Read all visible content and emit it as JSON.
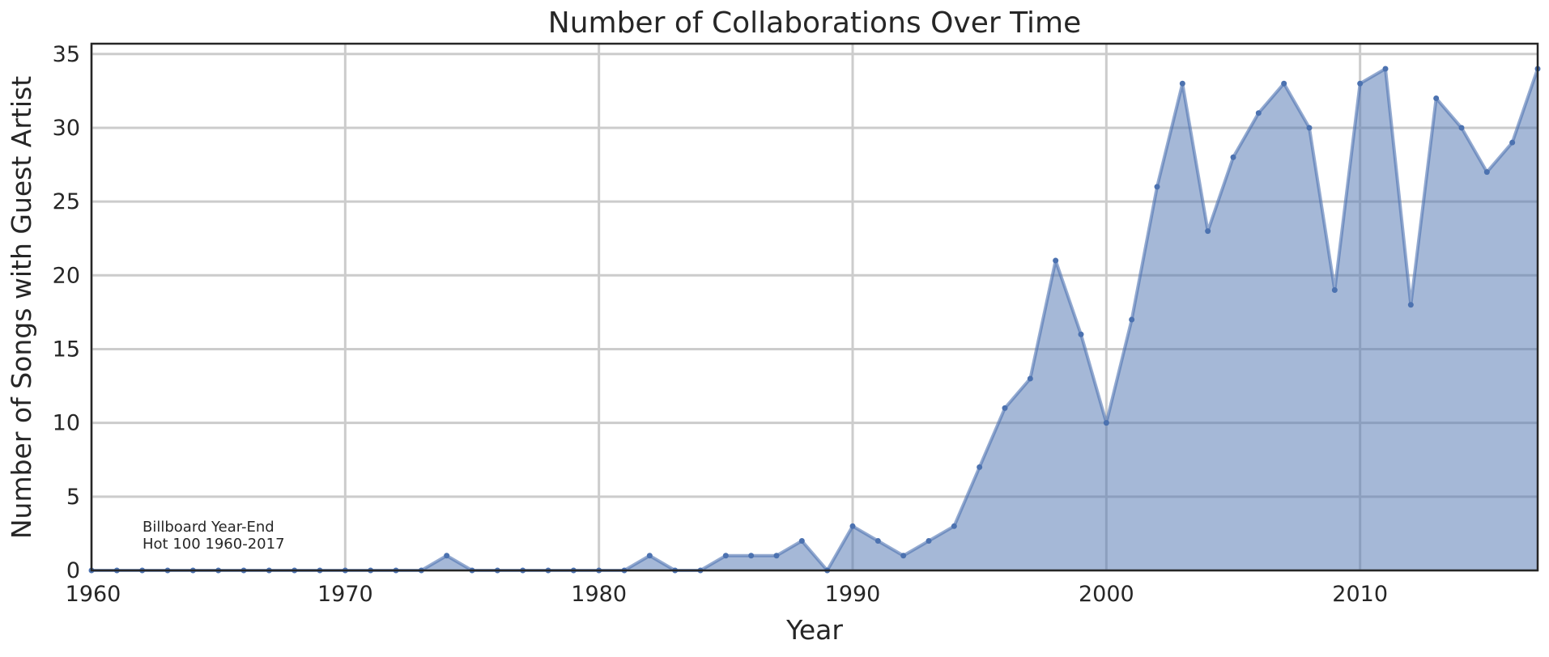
{
  "chart_data": {
    "type": "area",
    "title": "Number of Collaborations Over Time",
    "xlabel": "Year",
    "ylabel": "Number of Songs with Guest Artist",
    "xlim": [
      1960,
      2017
    ],
    "ylim": [
      0,
      35.7
    ],
    "xticks": [
      1960,
      1970,
      1980,
      1990,
      2000,
      2010
    ],
    "yticks": [
      0,
      5,
      10,
      15,
      20,
      25,
      30,
      35
    ],
    "grid": true,
    "annotation": [
      "Billboard Year-End",
      "Hot 100 1960-2017"
    ],
    "colors": {
      "fill": "#4c72b0",
      "line": "#4c72b0"
    },
    "x": [
      1960,
      1961,
      1962,
      1963,
      1964,
      1965,
      1966,
      1967,
      1968,
      1969,
      1970,
      1971,
      1972,
      1973,
      1974,
      1975,
      1976,
      1977,
      1978,
      1979,
      1980,
      1981,
      1982,
      1983,
      1984,
      1985,
      1986,
      1987,
      1988,
      1989,
      1990,
      1991,
      1992,
      1993,
      1994,
      1995,
      1996,
      1997,
      1998,
      1999,
      2000,
      2001,
      2002,
      2003,
      2004,
      2005,
      2006,
      2007,
      2008,
      2009,
      2010,
      2011,
      2012,
      2013,
      2014,
      2015,
      2016,
      2017
    ],
    "values": [
      0,
      0,
      0,
      0,
      0,
      0,
      0,
      0,
      0,
      0,
      0,
      0,
      0,
      0,
      1,
      0,
      0,
      0,
      0,
      0,
      0,
      0,
      1,
      0,
      0,
      1,
      1,
      1,
      2,
      0,
      3,
      2,
      1,
      2,
      3,
      7,
      11,
      13,
      21,
      16,
      10,
      17,
      26,
      33,
      23,
      28,
      31,
      33,
      30,
      19,
      33,
      34,
      18,
      32,
      30,
      27,
      29,
      34
    ]
  }
}
